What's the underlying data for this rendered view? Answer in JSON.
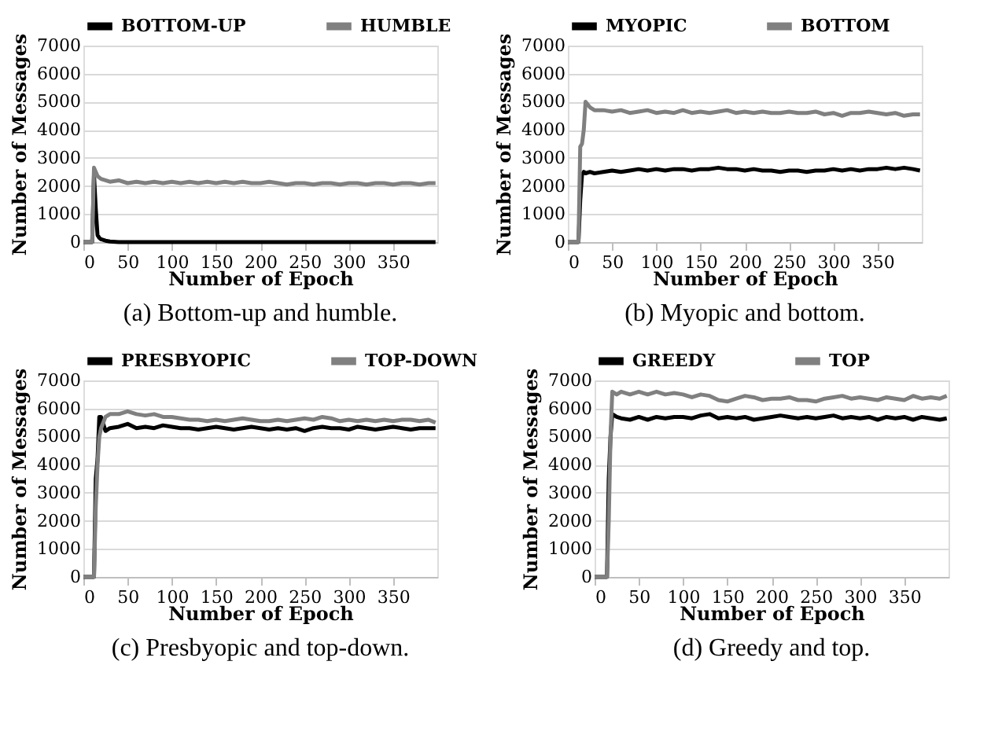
{
  "chart_data": [
    {
      "type": "line",
      "xlabel": "Number of Epoch",
      "ylabel": "Number of Messages",
      "xlim": [
        0,
        400
      ],
      "xticks": [
        0,
        50,
        100,
        150,
        200,
        250,
        300,
        350
      ],
      "ylim": [
        0,
        7000
      ],
      "yticks": [
        0,
        1000,
        2000,
        3000,
        4000,
        5000,
        6000,
        7000
      ],
      "grid": "y",
      "legend": "top",
      "line_style": "solid",
      "annotations": [
        "(a) Bottom-up and humble."
      ],
      "x": [
        0,
        5,
        10,
        12,
        14,
        16,
        18,
        20,
        25,
        30,
        40,
        50,
        60,
        70,
        80,
        90,
        100,
        110,
        120,
        130,
        140,
        150,
        160,
        170,
        180,
        190,
        200,
        210,
        220,
        230,
        240,
        250,
        260,
        270,
        280,
        290,
        300,
        310,
        320,
        330,
        340,
        350,
        360,
        370,
        380,
        390,
        398
      ],
      "series": [
        {
          "name": "BOTTOM-UP",
          "color": "#000000",
          "values": [
            0,
            0,
            0,
            2400,
            1200,
            250,
            150,
            100,
            50,
            20,
            0,
            0,
            0,
            0,
            0,
            0,
            0,
            0,
            0,
            0,
            0,
            0,
            0,
            0,
            0,
            0,
            0,
            0,
            0,
            0,
            0,
            0,
            0,
            0,
            0,
            0,
            0,
            0,
            0,
            0,
            0,
            0,
            0,
            0,
            0,
            0,
            0
          ]
        },
        {
          "name": "HUMBLE",
          "color": "#808080",
          "values": [
            0,
            0,
            0,
            2650,
            2500,
            2350,
            2300,
            2250,
            2200,
            2150,
            2200,
            2100,
            2150,
            2100,
            2150,
            2100,
            2150,
            2100,
            2150,
            2100,
            2150,
            2100,
            2150,
            2100,
            2150,
            2100,
            2100,
            2150,
            2100,
            2050,
            2100,
            2100,
            2050,
            2100,
            2100,
            2050,
            2100,
            2100,
            2050,
            2100,
            2100,
            2050,
            2100,
            2100,
            2050,
            2100,
            2100
          ]
        }
      ]
    },
    {
      "type": "line",
      "xlabel": "Number of Epoch",
      "ylabel": "Number of Messages",
      "xlim": [
        0,
        400
      ],
      "xticks": [
        0,
        50,
        100,
        150,
        200,
        250,
        300,
        350
      ],
      "ylim": [
        0,
        7000
      ],
      "yticks": [
        0,
        1000,
        2000,
        3000,
        4000,
        5000,
        6000,
        7000
      ],
      "grid": "y",
      "legend": "top",
      "line_style": "solid",
      "annotations": [
        "(b) Myopic and bottom."
      ],
      "x": [
        0,
        5,
        10,
        12,
        14,
        16,
        18,
        20,
        25,
        30,
        40,
        50,
        60,
        70,
        80,
        90,
        100,
        110,
        120,
        130,
        140,
        150,
        160,
        170,
        180,
        190,
        200,
        210,
        220,
        230,
        240,
        250,
        260,
        270,
        280,
        290,
        300,
        310,
        320,
        330,
        340,
        350,
        360,
        370,
        380,
        390,
        398
      ],
      "series": [
        {
          "name": "MYOPIC",
          "color": "#000000",
          "values": [
            0,
            0,
            0,
            0,
            1500,
            2400,
            2500,
            2450,
            2500,
            2450,
            2500,
            2550,
            2500,
            2550,
            2600,
            2550,
            2600,
            2550,
            2600,
            2600,
            2550,
            2600,
            2600,
            2650,
            2600,
            2600,
            2550,
            2600,
            2550,
            2550,
            2500,
            2550,
            2550,
            2500,
            2550,
            2550,
            2600,
            2550,
            2600,
            2550,
            2600,
            2600,
            2650,
            2600,
            2650,
            2600,
            2550
          ]
        },
        {
          "name": "BOTTOM",
          "color": "#808080",
          "values": [
            0,
            0,
            0,
            0,
            3400,
            3500,
            4000,
            5000,
            4800,
            4700,
            4700,
            4650,
            4700,
            4600,
            4650,
            4700,
            4600,
            4650,
            4600,
            4700,
            4600,
            4650,
            4600,
            4650,
            4700,
            4600,
            4650,
            4600,
            4650,
            4600,
            4600,
            4650,
            4600,
            4600,
            4650,
            4550,
            4600,
            4500,
            4600,
            4600,
            4650,
            4600,
            4550,
            4600,
            4500,
            4550,
            4550
          ]
        }
      ]
    },
    {
      "type": "line",
      "xlabel": "Number of Epoch",
      "ylabel": "Number of Messages",
      "xlim": [
        0,
        400
      ],
      "xticks": [
        0,
        50,
        100,
        150,
        200,
        250,
        300,
        350
      ],
      "ylim": [
        0,
        7000
      ],
      "yticks": [
        0,
        1000,
        2000,
        3000,
        4000,
        5000,
        6000,
        7000
      ],
      "grid": "y",
      "legend": "top",
      "line_style": "solid",
      "annotations": [
        "(c) Presbyopic and top-down."
      ],
      "x": [
        0,
        5,
        10,
        12,
        14,
        16,
        18,
        20,
        25,
        30,
        40,
        50,
        60,
        70,
        80,
        90,
        100,
        110,
        120,
        130,
        140,
        150,
        160,
        170,
        180,
        190,
        200,
        210,
        220,
        230,
        240,
        250,
        260,
        270,
        280,
        290,
        300,
        310,
        320,
        330,
        340,
        350,
        360,
        370,
        380,
        390,
        398
      ],
      "series": [
        {
          "name": "PRESBYOPIC",
          "color": "#000000",
          "values": [
            0,
            0,
            0,
            0,
            3500,
            4200,
            5700,
            5700,
            5200,
            5300,
            5350,
            5450,
            5300,
            5350,
            5300,
            5400,
            5350,
            5300,
            5300,
            5250,
            5300,
            5350,
            5300,
            5250,
            5300,
            5350,
            5300,
            5250,
            5300,
            5250,
            5300,
            5200,
            5300,
            5350,
            5300,
            5300,
            5250,
            5350,
            5300,
            5250,
            5300,
            5350,
            5300,
            5250,
            5300,
            5300,
            5300
          ]
        },
        {
          "name": "TOP-DOWN",
          "color": "#808080",
          "values": [
            0,
            0,
            0,
            0,
            2500,
            4000,
            5000,
            5300,
            5700,
            5800,
            5800,
            5900,
            5800,
            5750,
            5800,
            5700,
            5700,
            5650,
            5600,
            5600,
            5550,
            5600,
            5550,
            5600,
            5650,
            5600,
            5550,
            5550,
            5600,
            5550,
            5600,
            5650,
            5600,
            5700,
            5650,
            5550,
            5600,
            5550,
            5600,
            5550,
            5600,
            5550,
            5600,
            5600,
            5550,
            5600,
            5500
          ]
        }
      ]
    },
    {
      "type": "line",
      "xlabel": "Number of Epoch",
      "ylabel": "Number of Messages",
      "xlim": [
        0,
        400
      ],
      "xticks": [
        0,
        50,
        100,
        150,
        200,
        250,
        300,
        350
      ],
      "ylim": [
        0,
        7000
      ],
      "yticks": [
        0,
        1000,
        2000,
        3000,
        4000,
        5000,
        6000,
        7000
      ],
      "grid": "y",
      "legend": "top",
      "line_style": "solid",
      "annotations": [
        "(d) Greedy and top."
      ],
      "x": [
        0,
        5,
        10,
        12,
        14,
        16,
        18,
        20,
        25,
        30,
        40,
        50,
        60,
        70,
        80,
        90,
        100,
        110,
        120,
        130,
        140,
        150,
        160,
        170,
        180,
        190,
        200,
        210,
        220,
        230,
        240,
        250,
        260,
        270,
        280,
        290,
        300,
        310,
        320,
        330,
        340,
        350,
        360,
        370,
        380,
        390,
        398
      ],
      "series": [
        {
          "name": "GREEDY",
          "color": "#000000",
          "values": [
            0,
            0,
            0,
            0,
            0,
            3500,
            5000,
            5800,
            5700,
            5650,
            5600,
            5700,
            5600,
            5700,
            5650,
            5700,
            5700,
            5650,
            5750,
            5800,
            5650,
            5700,
            5650,
            5700,
            5600,
            5650,
            5700,
            5750,
            5700,
            5650,
            5700,
            5650,
            5700,
            5750,
            5650,
            5700,
            5650,
            5700,
            5600,
            5700,
            5650,
            5700,
            5600,
            5700,
            5650,
            5600,
            5650
          ]
        },
        {
          "name": "TOP",
          "color": "#808080",
          "values": [
            0,
            0,
            0,
            0,
            0,
            2000,
            5000,
            6600,
            6500,
            6600,
            6500,
            6600,
            6500,
            6600,
            6500,
            6550,
            6500,
            6400,
            6500,
            6450,
            6300,
            6250,
            6350,
            6450,
            6400,
            6300,
            6350,
            6350,
            6400,
            6300,
            6300,
            6250,
            6350,
            6400,
            6450,
            6350,
            6400,
            6350,
            6300,
            6400,
            6350,
            6300,
            6450,
            6350,
            6400,
            6350,
            6450
          ]
        }
      ]
    }
  ]
}
